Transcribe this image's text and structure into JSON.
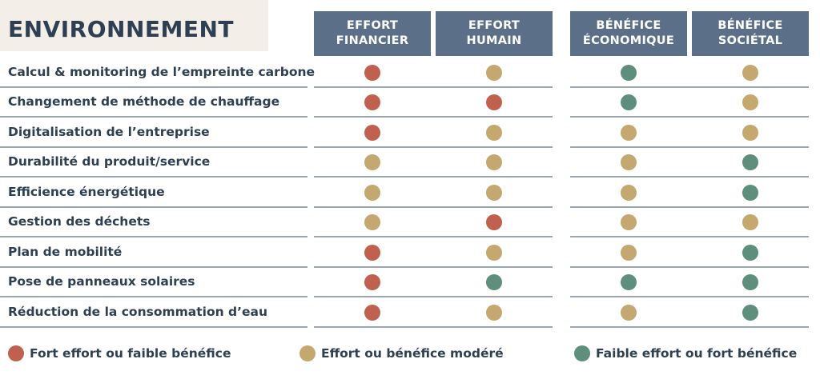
{
  "title": "ENVIRONNEMENT",
  "columns": [
    {
      "label": "EFFORT\nFINANCIER"
    },
    {
      "label": "EFFORT\nHUMAIN"
    },
    {
      "label": "BÉNÉFICE\nÉCONOMIQUE"
    },
    {
      "label": "BÉNÉFICE\nSOCIÉTAL"
    }
  ],
  "rows": [
    {
      "label": "Calcul & monitoring de l’empreinte carbone",
      "ratings": [
        "red",
        "amber",
        "green",
        "amber"
      ]
    },
    {
      "label": "Changement de méthode de chauffage",
      "ratings": [
        "red",
        "red",
        "green",
        "amber"
      ]
    },
    {
      "label": "Digitalisation de l’entreprise",
      "ratings": [
        "red",
        "amber",
        "amber",
        "amber"
      ]
    },
    {
      "label": "Durabilité du produit/service",
      "ratings": [
        "amber",
        "amber",
        "amber",
        "green"
      ]
    },
    {
      "label": "Efficience énergétique",
      "ratings": [
        "amber",
        "amber",
        "amber",
        "green"
      ]
    },
    {
      "label": "Gestion des déchets",
      "ratings": [
        "amber",
        "red",
        "amber",
        "amber"
      ]
    },
    {
      "label": "Plan de mobilité",
      "ratings": [
        "red",
        "amber",
        "amber",
        "green"
      ]
    },
    {
      "label": "Pose de panneaux solaires",
      "ratings": [
        "red",
        "green",
        "green",
        "green"
      ]
    },
    {
      "label": "Réduction de la consommation d’eau",
      "ratings": [
        "red",
        "amber",
        "amber",
        "green"
      ]
    }
  ],
  "legend": [
    {
      "color": "red",
      "label": "Fort effort ou faible bénéfice"
    },
    {
      "color": "amber",
      "label": "Effort ou bénéfice modéré"
    },
    {
      "color": "green",
      "label": "Faible effort ou fort bénéfice"
    }
  ],
  "colors": {
    "red": "#c0604e",
    "amber": "#c5a770",
    "green": "#5e8f7c",
    "header": "#5b7088",
    "text": "#2e3f52"
  }
}
